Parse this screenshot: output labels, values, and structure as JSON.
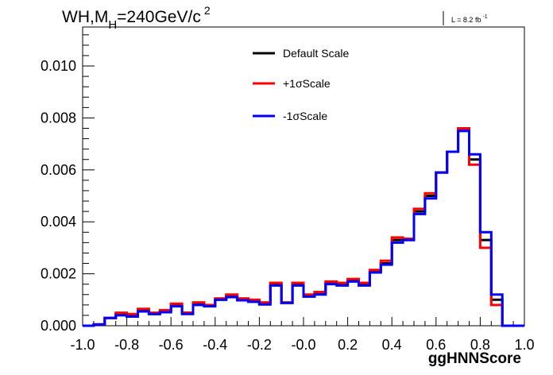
{
  "chart_data": {
    "type": "line",
    "title": "WH,M",
    "title_sub": "H",
    "title_rest": "=240GeV/c",
    "title_sup": "2",
    "lumi_label": "L = 8.2 fb",
    "lumi_sup": "-1",
    "xlabel": "ggHNNScore",
    "ylabel": "",
    "xlim": [
      -1.0,
      1.0
    ],
    "ylim": [
      0.0,
      0.0115
    ],
    "x_ticks": [
      "-1.0",
      "-0.8",
      "-0.6",
      "-0.4",
      "-0.2",
      "-0.0",
      "0.2",
      "0.4",
      "0.6",
      "0.8",
      "1.0"
    ],
    "y_ticks": [
      "0.000",
      "0.002",
      "0.004",
      "0.006",
      "0.008",
      "0.010"
    ],
    "bin_edges": [
      -1.0,
      -0.95,
      -0.9,
      -0.85,
      -0.8,
      -0.75,
      -0.7,
      -0.65,
      -0.6,
      -0.55,
      -0.5,
      -0.45,
      -0.4,
      -0.35,
      -0.3,
      -0.25,
      -0.2,
      -0.15,
      -0.1,
      -0.05,
      0.0,
      0.05,
      0.1,
      0.15,
      0.2,
      0.25,
      0.3,
      0.35,
      0.4,
      0.45,
      0.5,
      0.55,
      0.6,
      0.65,
      0.7,
      0.75,
      0.8,
      0.85,
      0.9,
      0.95,
      1.0
    ],
    "grid": false,
    "legend_position": "top-center",
    "series": [
      {
        "name": "Default Scale",
        "color": "#000000",
        "values": [
          0.0,
          5e-05,
          0.0003,
          0.00045,
          0.0004,
          0.0006,
          0.00045,
          0.00055,
          0.0008,
          0.0005,
          0.00085,
          0.00075,
          0.001,
          0.00115,
          0.001,
          0.00095,
          0.00085,
          0.0016,
          0.00088,
          0.0016,
          0.00115,
          0.00125,
          0.00165,
          0.0016,
          0.00175,
          0.0016,
          0.0021,
          0.0024,
          0.0033,
          0.0033,
          0.0044,
          0.005,
          0.0059,
          0.0067,
          0.0075,
          0.0064,
          0.0033,
          0.001,
          0.0,
          0.0
        ]
      },
      {
        "name": "+1σScale",
        "color": "#ff0000",
        "values": [
          0.0,
          5e-05,
          0.0003,
          0.0005,
          0.00045,
          0.00065,
          0.0005,
          0.0006,
          0.00085,
          0.0005,
          0.0009,
          0.0008,
          0.00105,
          0.0012,
          0.00105,
          0.001,
          0.0009,
          0.00165,
          0.0009,
          0.00165,
          0.0012,
          0.0013,
          0.0017,
          0.00165,
          0.0018,
          0.00165,
          0.00215,
          0.0025,
          0.0034,
          0.00335,
          0.0045,
          0.0051,
          0.0059,
          0.0067,
          0.0076,
          0.0062,
          0.003,
          0.0008,
          0.0,
          0.0
        ]
      },
      {
        "name": "-1σScale",
        "color": "#0000ff",
        "values": [
          0.0,
          5e-05,
          0.0003,
          0.0004,
          0.00035,
          0.00055,
          0.00045,
          0.00052,
          0.00075,
          0.00045,
          0.0008,
          0.00075,
          0.001,
          0.0011,
          0.00098,
          0.00092,
          0.00082,
          0.00155,
          0.00088,
          0.00155,
          0.00112,
          0.0012,
          0.0016,
          0.00155,
          0.0017,
          0.00155,
          0.00205,
          0.00235,
          0.0032,
          0.0033,
          0.0043,
          0.0049,
          0.0059,
          0.0067,
          0.0075,
          0.0066,
          0.0036,
          0.0012,
          0.0,
          0.0
        ]
      }
    ]
  }
}
